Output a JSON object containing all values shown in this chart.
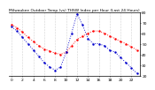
{
  "title": "Milwaukee Outdoor Temp (vs) THSW Index per Hour (Last 24 Hours)",
  "temp_color": "#ff0000",
  "thsw_color": "#0000cc",
  "background_color": "#ffffff",
  "grid_color": "#888888",
  "hours": [
    0,
    1,
    2,
    3,
    4,
    5,
    6,
    7,
    8,
    9,
    10,
    11,
    12,
    13,
    14,
    15,
    16,
    17,
    18,
    19,
    20,
    21,
    22,
    23
  ],
  "temp": [
    68,
    65,
    61,
    56,
    52,
    48,
    45,
    43,
    41,
    40,
    42,
    48,
    54,
    57,
    60,
    62,
    62,
    60,
    57,
    55,
    52,
    50,
    47,
    44
  ],
  "thsw": [
    66,
    62,
    56,
    50,
    44,
    38,
    32,
    28,
    25,
    28,
    42,
    60,
    78,
    68,
    55,
    50,
    50,
    48,
    44,
    42,
    37,
    32,
    27,
    22
  ],
  "ylim": [
    20,
    80
  ],
  "yticks": [
    20,
    30,
    40,
    50,
    60,
    70,
    80
  ],
  "ytick_labels": [
    "20",
    "30",
    "40",
    "50",
    "60",
    "70",
    "80"
  ],
  "xlim": [
    -0.5,
    23.5
  ],
  "xtick_positions": [
    0,
    2,
    4,
    6,
    8,
    10,
    12,
    14,
    16,
    18,
    20,
    22
  ],
  "xtick_labels": [
    "0",
    "2",
    "4",
    "6",
    "8",
    "10",
    "12",
    "14",
    "16",
    "18",
    "20",
    "22"
  ],
  "vgrid_positions": [
    0,
    2,
    4,
    6,
    8,
    10,
    12,
    14,
    16,
    18,
    20,
    22
  ],
  "title_fontsize": 3.2,
  "tick_fontsize": 3.2,
  "linewidth": 0.7,
  "markersize": 1.5
}
